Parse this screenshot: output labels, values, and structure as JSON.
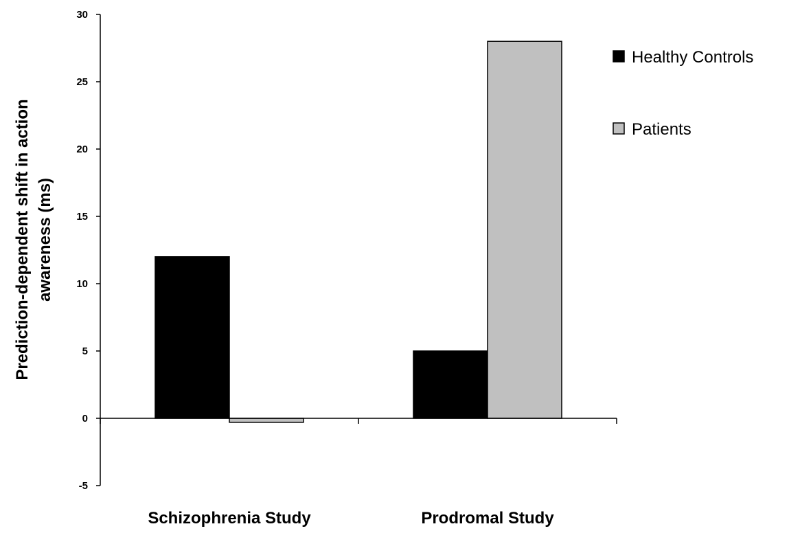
{
  "chart_data": {
    "type": "bar",
    "categories": [
      "Schizophrenia Study",
      "Prodromal Study"
    ],
    "series": [
      {
        "name": "Healthy Controls",
        "values": [
          12,
          5
        ],
        "color": "#000000"
      },
      {
        "name": "Patients",
        "values": [
          -0.3,
          28
        ],
        "color": "#c0c0c0"
      }
    ],
    "title": "",
    "xlabel": "",
    "ylabel_lines": [
      "Prediction-dependent shift in action",
      "awareness (ms)"
    ],
    "ylim": [
      -5,
      30
    ],
    "yticks": [
      -5,
      0,
      5,
      10,
      15,
      20,
      25,
      30
    ],
    "grid": false,
    "legend_position": "top-right"
  }
}
